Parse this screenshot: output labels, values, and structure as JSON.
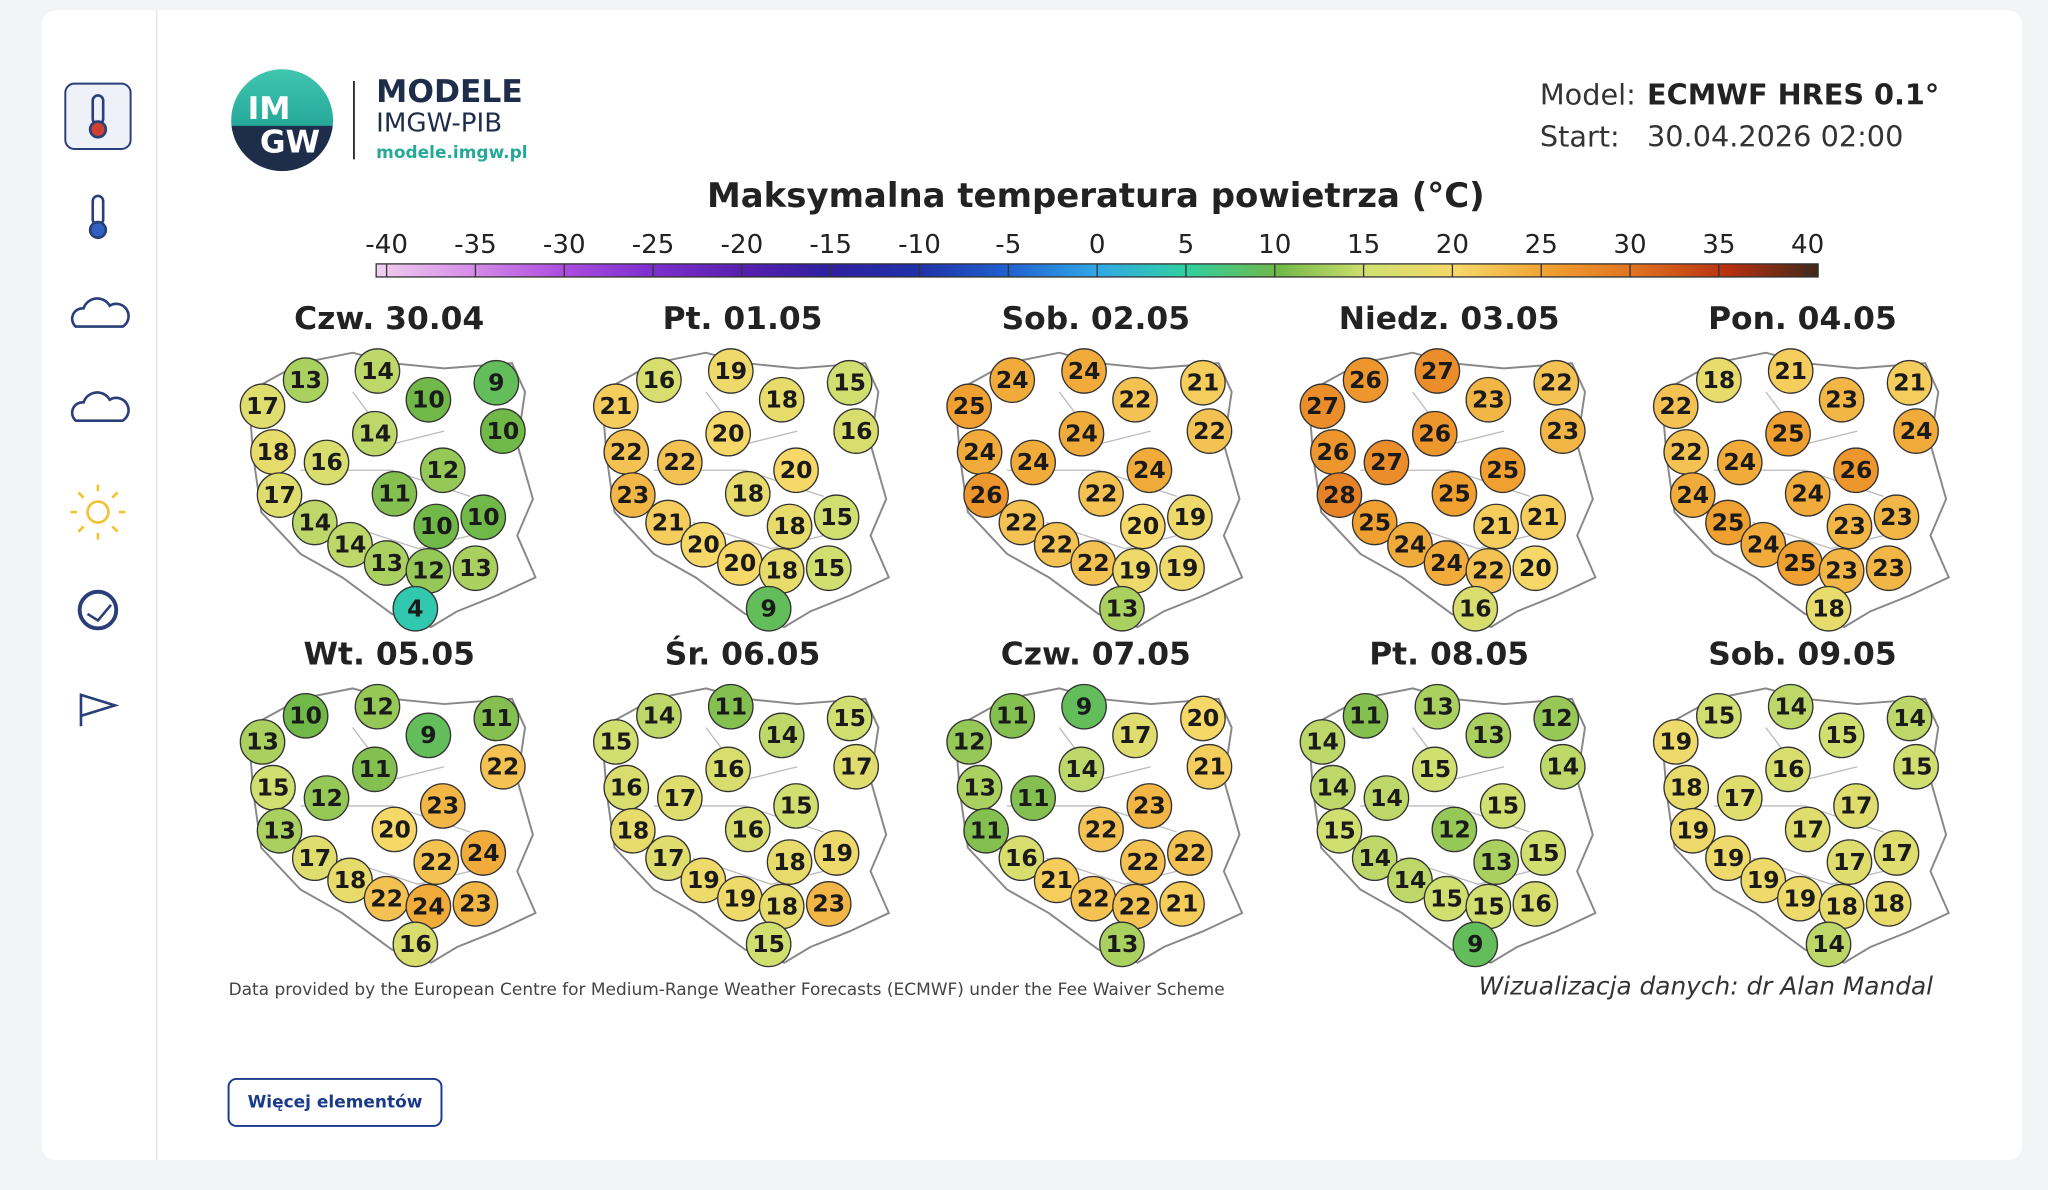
{
  "logo": {
    "badge_top": "IM",
    "badge_bottom": "GW",
    "title": "MODELE",
    "subtitle": "IMGW-PIB",
    "url": "modele.imgw.pl"
  },
  "model": {
    "model_label": "Model:",
    "model_value": "ECMWF HRES 0.1°",
    "start_label": "Start:",
    "start_value": "30.04.2026 02:00"
  },
  "title": "Maksymalna temperatura powietrza (°C)",
  "colorbar": {
    "ticks": [
      -40,
      -35,
      -30,
      -25,
      -20,
      -15,
      -10,
      -5,
      0,
      5,
      10,
      15,
      20,
      25,
      30,
      35,
      40
    ],
    "colors": [
      "#f0d0f0",
      "#d890e8",
      "#b050e0",
      "#8030d0",
      "#5a20b0",
      "#3020a0",
      "#2030a8",
      "#2060d0",
      "#30a8e8",
      "#30d0a0",
      "#70b848",
      "#d0e070",
      "#f6d868",
      "#f0a030",
      "#e07020",
      "#b83010",
      "#402818"
    ]
  },
  "maps": [
    {
      "day": "Czw. 30.04",
      "values": [
        13,
        14,
        10,
        9,
        17,
        10,
        14,
        18,
        16,
        12,
        17,
        11,
        10,
        10,
        14,
        14,
        13,
        12,
        13,
        4
      ]
    },
    {
      "day": "Pt. 01.05",
      "values": [
        16,
        19,
        18,
        15,
        21,
        16,
        20,
        22,
        22,
        20,
        23,
        18,
        18,
        15,
        21,
        20,
        20,
        18,
        15,
        9
      ]
    },
    {
      "day": "Sob. 02.05",
      "values": [
        24,
        24,
        22,
        21,
        25,
        22,
        24,
        24,
        24,
        24,
        26,
        22,
        20,
        19,
        22,
        22,
        22,
        19,
        19,
        13
      ]
    },
    {
      "day": "Niedz. 03.05",
      "values": [
        26,
        27,
        23,
        22,
        27,
        23,
        26,
        26,
        27,
        25,
        28,
        25,
        21,
        21,
        25,
        24,
        24,
        22,
        20,
        16
      ]
    },
    {
      "day": "Pon. 04.05",
      "values": [
        18,
        21,
        23,
        21,
        22,
        24,
        25,
        22,
        24,
        26,
        24,
        24,
        23,
        23,
        25,
        24,
        25,
        23,
        23,
        18
      ]
    },
    {
      "day": "Wt. 05.05",
      "values": [
        10,
        12,
        9,
        11,
        13,
        22,
        11,
        15,
        12,
        23,
        13,
        20,
        22,
        24,
        17,
        18,
        22,
        24,
        23,
        16
      ]
    },
    {
      "day": "Śr. 06.05",
      "values": [
        14,
        11,
        14,
        15,
        15,
        17,
        16,
        16,
        17,
        15,
        18,
        16,
        18,
        19,
        17,
        19,
        19,
        18,
        23,
        15
      ]
    },
    {
      "day": "Czw. 07.05",
      "values": [
        11,
        9,
        17,
        20,
        12,
        21,
        14,
        13,
        11,
        23,
        11,
        22,
        22,
        22,
        16,
        21,
        22,
        22,
        21,
        13
      ]
    },
    {
      "day": "Pt. 08.05",
      "values": [
        11,
        13,
        13,
        12,
        14,
        14,
        15,
        14,
        14,
        15,
        15,
        12,
        13,
        15,
        14,
        14,
        15,
        15,
        16,
        9
      ]
    },
    {
      "day": "Sob. 09.05",
      "values": [
        15,
        14,
        15,
        14,
        19,
        15,
        16,
        18,
        17,
        17,
        19,
        17,
        17,
        17,
        19,
        19,
        19,
        18,
        18,
        14
      ]
    }
  ],
  "footer": {
    "credit": "Data provided by the European Centre for Medium-Range Weather Forecasts (ECMWF) under the Fee Waiver Scheme",
    "author": "Wizualizacja danych: dr Alan Mandal"
  },
  "button": "Więcej elementów"
}
